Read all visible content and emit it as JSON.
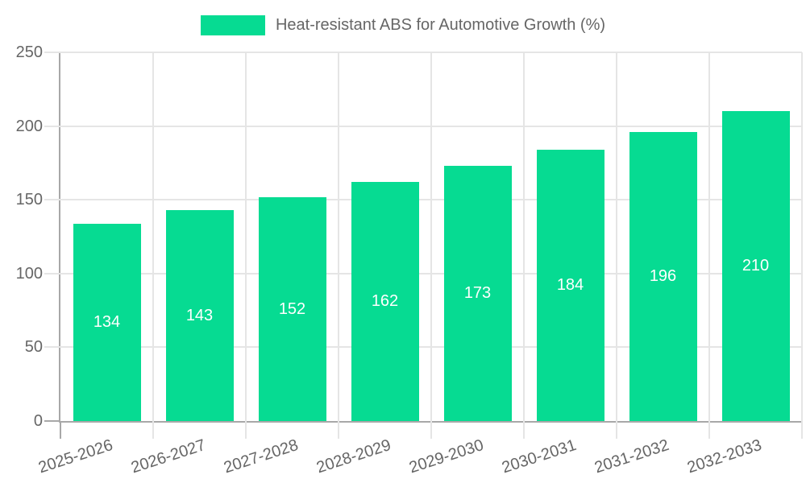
{
  "chart_data": {
    "type": "bar",
    "title": "Heat-resistant ABS for Automotive Growth (%)",
    "legend": {
      "position": "top",
      "label": "Heat-resistant ABS for Automotive Growth (%)"
    },
    "categories": [
      "2025-2026",
      "2026-2027",
      "2027-2028",
      "2028-2029",
      "2029-2030",
      "2030-2031",
      "2031-2032",
      "2032-2033"
    ],
    "values": [
      134,
      143,
      152,
      162,
      173,
      184,
      196,
      210
    ],
    "xlabel": "",
    "ylabel": "",
    "ylim": [
      0,
      250
    ],
    "y_ticks": [
      0,
      50,
      100,
      150,
      200,
      250
    ],
    "grid": true,
    "colors": {
      "bar": "#06DB92",
      "bar_value_label": "#FFFFFF",
      "axis_line": "#A8A8A8",
      "grid_line": "#E5E5E5",
      "tick_text": "#666666",
      "legend_text": "#666666",
      "background": "#FFFFFF"
    }
  }
}
